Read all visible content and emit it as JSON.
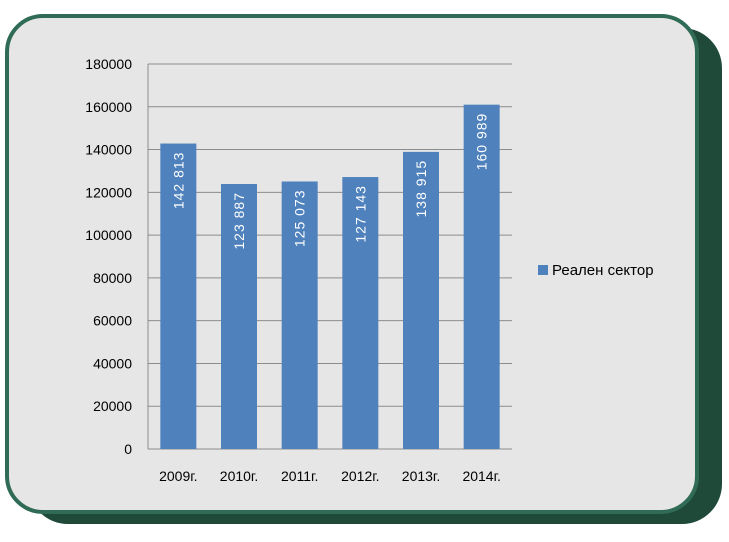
{
  "chart_data": {
    "type": "bar",
    "categories": [
      "2009г.",
      "2010г.",
      "2011г.",
      "2012г.",
      "2013г.",
      "2014г."
    ],
    "series": [
      {
        "name": "Реален сектор",
        "values": [
          142813,
          123887,
          125073,
          127143,
          138915,
          160989
        ],
        "data_labels": [
          "142 813",
          "123 887",
          "125 073",
          "127 143",
          "138 915",
          "160 989"
        ],
        "color": "#4f81bd"
      }
    ],
    "y_ticks": [
      "0",
      "20000",
      "40000",
      "60000",
      "80000",
      "100000",
      "120000",
      "140000",
      "160000",
      "180000"
    ],
    "ylim": [
      0,
      180000
    ],
    "grid": true,
    "legend_position": "right"
  },
  "colors": {
    "frame_fill": "#e6e6e6",
    "frame_border": "#2f6b55",
    "frame_shadow": "#1f4a3a",
    "gridline": "#8c8c8c",
    "bar": "#4f81bd"
  }
}
